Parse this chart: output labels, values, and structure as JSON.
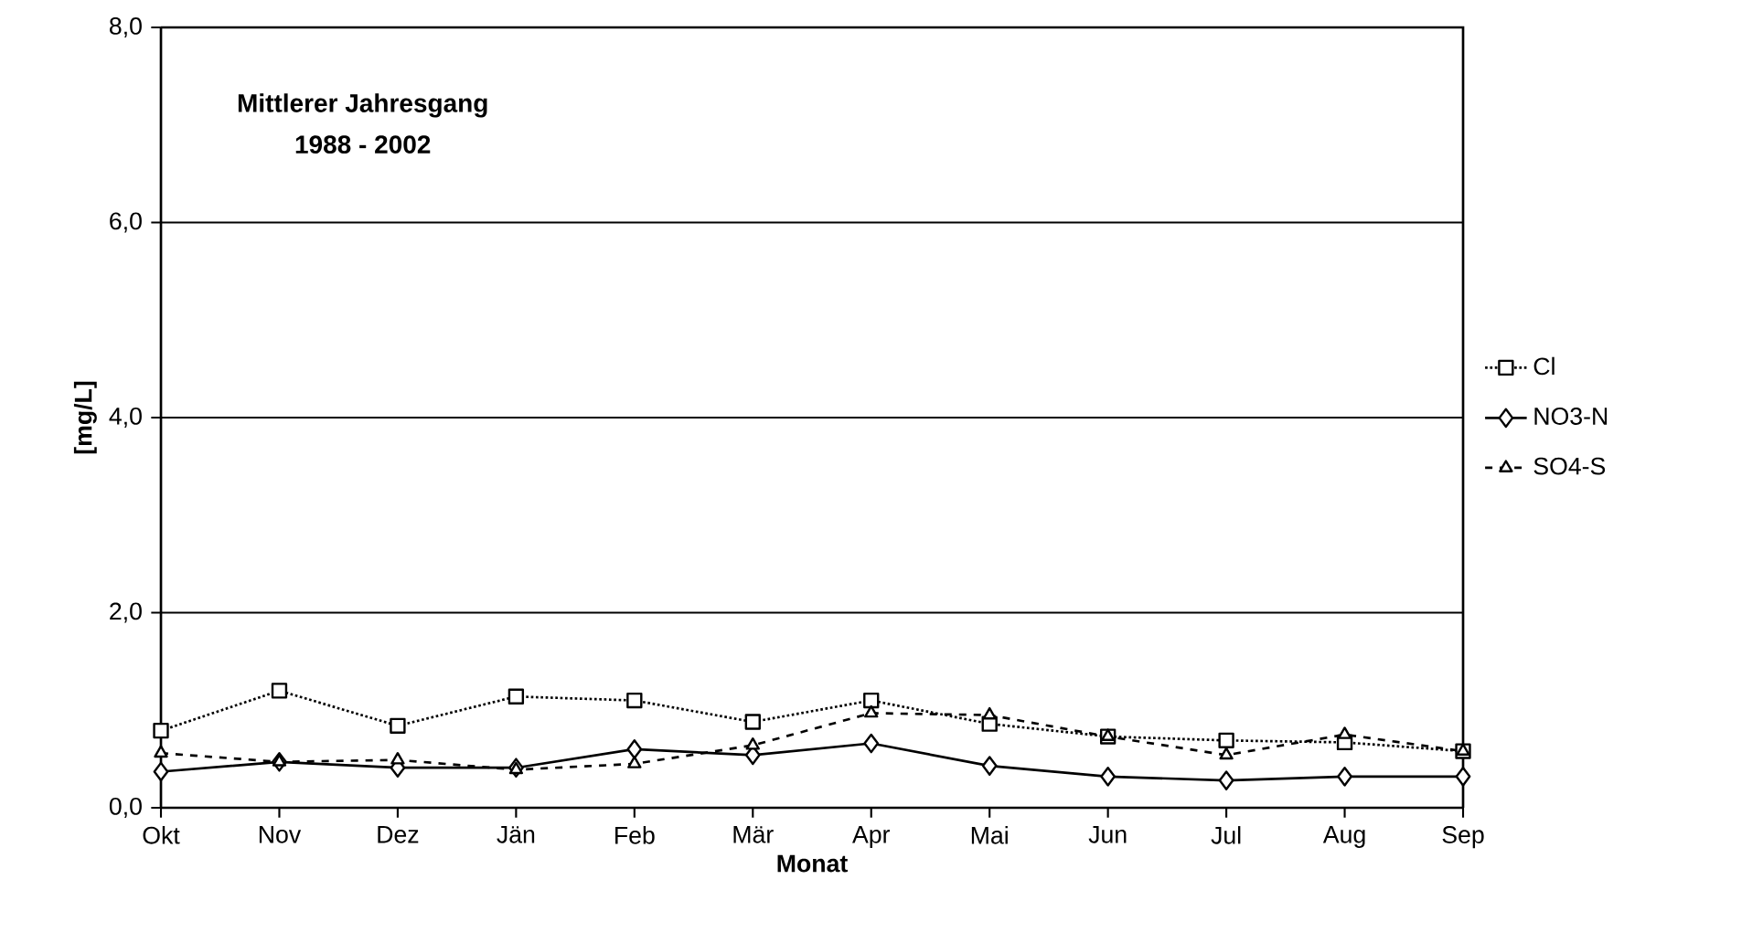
{
  "chart_data": {
    "type": "line",
    "title": "Mittlerer Jahresgang",
    "subtitle": "1988 - 2002",
    "xlabel": "Monat",
    "ylabel": "[mg/L]",
    "categories": [
      "Okt",
      "Nov",
      "Dez",
      "Jän",
      "Feb",
      "Mär",
      "Apr",
      "Mai",
      "Jun",
      "Jul",
      "Aug",
      "Sep"
    ],
    "series": [
      {
        "name": "Cl",
        "color": "#000000",
        "marker": "square",
        "line_style": "dotted",
        "values": [
          0.79,
          1.2,
          0.84,
          1.14,
          1.1,
          0.88,
          1.1,
          0.86,
          0.73,
          0.69,
          0.67,
          0.58
        ]
      },
      {
        "name": "NO3-N",
        "color": "#000000",
        "marker": "diamond",
        "line_style": "solid",
        "values": [
          0.37,
          0.47,
          0.41,
          0.41,
          0.6,
          0.54,
          0.66,
          0.43,
          0.32,
          0.28,
          0.32,
          0.32
        ]
      },
      {
        "name": "SO4-S",
        "color": "#000000",
        "marker": "triangle",
        "line_style": "dashed",
        "values": [
          0.56,
          0.47,
          0.49,
          0.39,
          0.45,
          0.64,
          0.97,
          0.95,
          0.73,
          0.54,
          0.75,
          0.58
        ]
      }
    ],
    "ylim": [
      0,
      8
    ],
    "yticks": [
      {
        "value": 0,
        "label": "0,0"
      },
      {
        "value": 2,
        "label": "2,0"
      },
      {
        "value": 4,
        "label": "4,0"
      },
      {
        "value": 6,
        "label": "6,0"
      },
      {
        "value": 8,
        "label": "8,0"
      }
    ],
    "grid": "y",
    "legend": "right"
  }
}
